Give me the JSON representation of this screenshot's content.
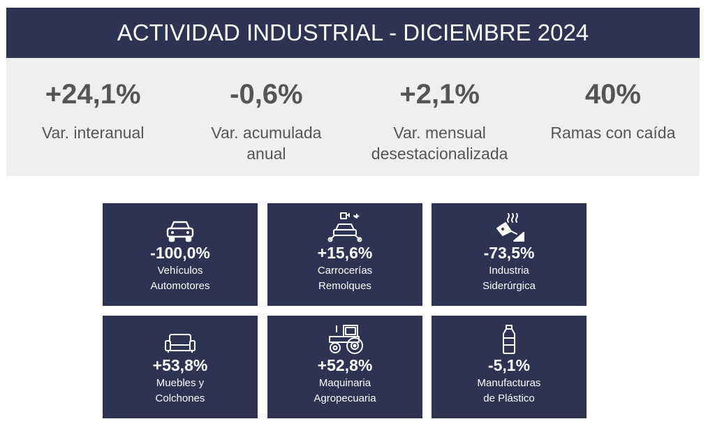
{
  "title": "ACTIVIDAD INDUSTRIAL - DICIEMBRE 2024",
  "kpis": [
    {
      "value": "+24,1%",
      "label": "Var. interanual"
    },
    {
      "value": "-0,6%",
      "label": "Var. acumulada anual"
    },
    {
      "value": "+2,1%",
      "label": "Var. mensual desestacionalizada"
    },
    {
      "value": "40%",
      "label": "Ramas con caída"
    }
  ],
  "branches": [
    {
      "value": "-100,0%",
      "line1": "Vehículos",
      "line2": "Automotores",
      "icon": "car-icon"
    },
    {
      "value": "+15,6%",
      "line1": "Carrocerías",
      "line2": "Remolques",
      "icon": "car-repair-icon"
    },
    {
      "value": "-73,5%",
      "line1": "Industria",
      "line2": "Siderúrgica",
      "icon": "steel-ladle-icon"
    },
    {
      "value": "+53,8%",
      "line1": "Muebles y",
      "line2": "Colchones",
      "icon": "sofa-icon"
    },
    {
      "value": "+52,8%",
      "line1": "Maquinaria",
      "line2": "Agropecuaria",
      "icon": "tractor-icon"
    },
    {
      "value": "-5,1%",
      "line1": "Manufacturas",
      "line2": "de Plástico",
      "icon": "plastic-bottle-icon"
    }
  ],
  "colors": {
    "navy": "#2d3350",
    "band": "#efefef",
    "text_gray": "#555555"
  }
}
